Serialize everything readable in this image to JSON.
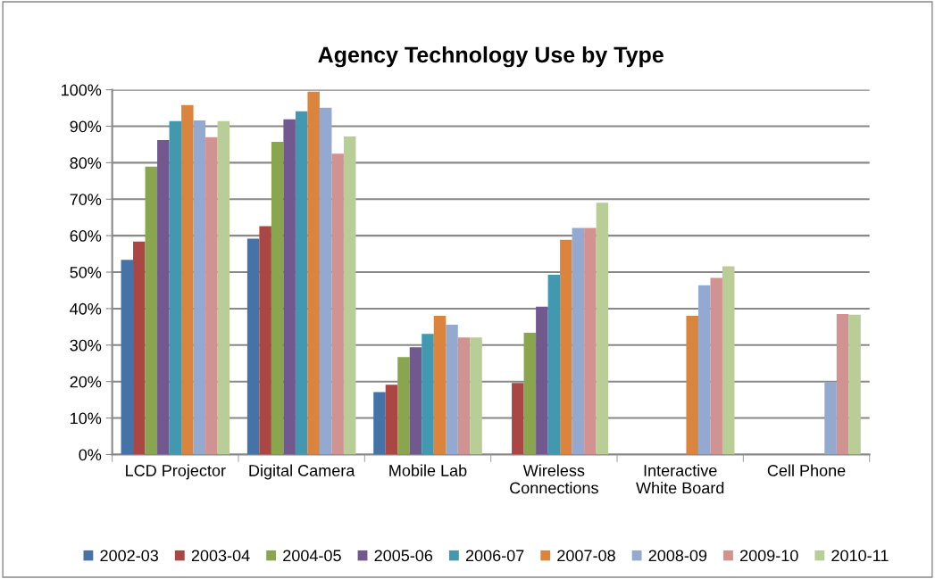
{
  "chart_data": {
    "type": "bar",
    "title": "Agency Technology Use by Type",
    "categories": [
      "LCD Projector",
      "Digital Camera",
      "Mobile Lab",
      "Wireless\nConnections",
      "Interactive\nWhite Board",
      "Cell Phone"
    ],
    "series": [
      {
        "name": "2002-03",
        "color": "#4572a7",
        "values": [
          53.4,
          59.2,
          17.1,
          null,
          null,
          null
        ]
      },
      {
        "name": "2003-04",
        "color": "#aa4643",
        "values": [
          58.4,
          62.6,
          19.1,
          19.6,
          null,
          null
        ]
      },
      {
        "name": "2004-05",
        "color": "#89a54e",
        "values": [
          78.9,
          85.7,
          26.7,
          33.4,
          null,
          null
        ]
      },
      {
        "name": "2005-06",
        "color": "#71588f",
        "values": [
          86.2,
          91.9,
          29.4,
          40.5,
          null,
          null
        ]
      },
      {
        "name": "2006-07",
        "color": "#4198af",
        "values": [
          91.4,
          94.1,
          33.1,
          49.3,
          null,
          null
        ]
      },
      {
        "name": "2007-08",
        "color": "#db843d",
        "values": [
          95.8,
          99.5,
          38.0,
          58.9,
          38.0,
          null
        ]
      },
      {
        "name": "2008-09",
        "color": "#93a9cf",
        "values": [
          91.6,
          95.1,
          35.6,
          62.1,
          46.4,
          19.8
        ]
      },
      {
        "name": "2009-10",
        "color": "#d19392",
        "values": [
          87.0,
          82.5,
          32.1,
          62.1,
          48.4,
          38.5
        ]
      },
      {
        "name": "2010-11",
        "color": "#b9cd96",
        "values": [
          91.4,
          87.2,
          32.1,
          69.0,
          51.6,
          38.3
        ]
      }
    ],
    "ylim": [
      0,
      100
    ],
    "yticks": [
      {
        "value": 0,
        "label": "0%"
      },
      {
        "value": 10,
        "label": "10%"
      },
      {
        "value": 20,
        "label": "20%"
      },
      {
        "value": 30,
        "label": "30%"
      },
      {
        "value": 40,
        "label": "40%"
      },
      {
        "value": 50,
        "label": "50%"
      },
      {
        "value": 60,
        "label": "60%"
      },
      {
        "value": 70,
        "label": "70%"
      },
      {
        "value": 80,
        "label": "80%"
      },
      {
        "value": 90,
        "label": "90%"
      },
      {
        "value": 100,
        "label": "100%"
      }
    ],
    "grid": "y",
    "legend": "bottom"
  }
}
